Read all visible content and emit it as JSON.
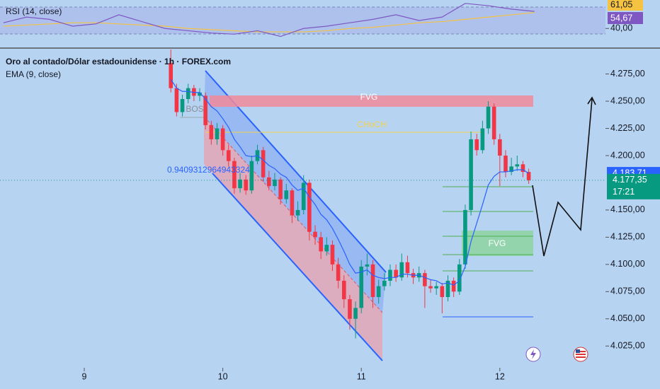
{
  "chart_data": {
    "type": "candlestick",
    "title": "Oro al contado/Dólar estadounidense · 1h · FOREX.com",
    "indicator": "EMA (9, close)",
    "x": [
      15,
      16,
      17,
      18,
      19,
      20,
      21,
      22,
      23,
      24,
      25,
      26,
      27,
      28,
      29,
      30,
      31,
      32,
      33,
      34,
      35,
      36,
      37,
      38,
      39,
      40,
      41,
      42,
      43,
      44,
      45,
      46,
      47,
      48,
      49,
      50,
      51,
      52,
      53,
      54,
      55,
      56,
      57,
      58,
      59,
      60,
      61,
      62,
      63,
      64,
      65,
      66,
      67,
      68,
      69,
      70,
      71,
      72,
      73,
      74,
      75,
      76,
      77
    ],
    "open": [
      4285,
      4262,
      4240,
      4252,
      4262,
      4255,
      4255,
      4228,
      4215,
      4225,
      4205,
      4195,
      4170,
      4178,
      4168,
      4195,
      4205,
      4180,
      4172,
      4178,
      4160,
      4168,
      4145,
      4150,
      4175,
      4130,
      4125,
      4112,
      4118,
      4100,
      4085,
      4068,
      4050,
      4060,
      4098,
      4100,
      4070,
      4080,
      4085,
      4095,
      4088,
      4102,
      4092,
      4088,
      4092,
      4080,
      4078,
      4080,
      4070,
      4085,
      4075,
      4100,
      4150,
      4215,
      4205,
      4225,
      4245,
      4215,
      4200,
      4185,
      4190,
      4192,
      4185
    ],
    "high": [
      4298,
      4266,
      4256,
      4266,
      4265,
      4262,
      4258,
      4232,
      4230,
      4228,
      4210,
      4198,
      4184,
      4182,
      4200,
      4210,
      4208,
      4186,
      4184,
      4180,
      4174,
      4170,
      4158,
      4182,
      4178,
      4136,
      4130,
      4125,
      4122,
      4106,
      4090,
      4072,
      4066,
      4104,
      4110,
      4104,
      4086,
      4092,
      4100,
      4100,
      4110,
      4108,
      4096,
      4098,
      4095,
      4086,
      4084,
      4083,
      4090,
      4088,
      4105,
      4155,
      4222,
      4220,
      4232,
      4250,
      4248,
      4220,
      4205,
      4198,
      4200,
      4195,
      4188
    ],
    "low": [
      4258,
      4236,
      4236,
      4248,
      4250,
      4250,
      4224,
      4210,
      4210,
      4200,
      4190,
      4165,
      4166,
      4164,
      4165,
      4192,
      4176,
      4168,
      4168,
      4155,
      4156,
      4138,
      4140,
      4146,
      4122,
      4118,
      4105,
      4108,
      4094,
      4078,
      4060,
      4040,
      4032,
      4055,
      4090,
      4060,
      4064,
      4076,
      4080,
      4084,
      4085,
      4088,
      4082,
      4084,
      4060,
      4074,
      4072,
      4055,
      4066,
      4070,
      4072,
      4096,
      4145,
      4200,
      4202,
      4220,
      4210,
      4172,
      4180,
      4182,
      4186,
      4180,
      4174
    ],
    "close": [
      4262,
      4240,
      4252,
      4262,
      4255,
      4258,
      4228,
      4215,
      4225,
      4205,
      4195,
      4170,
      4178,
      4168,
      4195,
      4205,
      4180,
      4172,
      4178,
      4160,
      4168,
      4145,
      4150,
      4175,
      4130,
      4125,
      4112,
      4118,
      4100,
      4085,
      4068,
      4050,
      4060,
      4098,
      4100,
      4070,
      4080,
      4085,
      4095,
      4088,
      4102,
      4092,
      4088,
      4092,
      4080,
      4078,
      4080,
      4070,
      4085,
      4075,
      4100,
      4150,
      4215,
      4205,
      4225,
      4245,
      4215,
      4200,
      4185,
      4190,
      4192,
      4185,
      4177.35
    ],
    "ema": [
      4270,
      4262,
      4259,
      4259,
      4258,
      4258,
      4252,
      4245,
      4241,
      4234,
      4226,
      4215,
      4208,
      4200,
      4199,
      4200,
      4196,
      4191,
      4188,
      4183,
      4180,
      4173,
      4168,
      4170,
      4162,
      4155,
      4146,
      4141,
      4133,
      4123,
      4112,
      4100,
      4092,
      4093,
      4095,
      4090,
      4088,
      4087,
      4088,
      4088,
      4091,
      4091,
      4090,
      4090,
      4088,
      4086,
      4085,
      4082,
      4083,
      4081,
      4085,
      4098,
      4121,
      4138,
      4155,
      4173,
      4181,
      4185,
      4185,
      4186,
      4187,
      4187,
      4183.71
    ],
    "up_color": "#089981",
    "down_color": "#f23645",
    "ema_color": "#2962ff",
    "ylim": [
      4005,
      4297.5
    ],
    "yticks": [
      {
        "value": 4025,
        "label": "4.025,00"
      },
      {
        "value": 4050,
        "label": "4.050,00"
      },
      {
        "value": 4075,
        "label": "4.075,00"
      },
      {
        "value": 4100,
        "label": "4.100,00"
      },
      {
        "value": 4125,
        "label": "4.125,00"
      },
      {
        "value": 4150,
        "label": "4.150,00"
      },
      {
        "value": 4200,
        "label": "4.200,00"
      },
      {
        "value": 4225,
        "label": "4.225,00"
      },
      {
        "value": 4250,
        "label": "4.250,00"
      },
      {
        "value": 4275,
        "label": "4.275,00"
      }
    ],
    "xlim": [
      -14.6,
      90.3
    ],
    "xticks": [
      {
        "value": 0,
        "label": "9"
      },
      {
        "value": 24,
        "label": "10"
      },
      {
        "value": 48,
        "label": "11"
      },
      {
        "value": 72,
        "label": "12"
      }
    ],
    "ema_price": {
      "value": 4183.71,
      "label": "4.183,71"
    },
    "last_price": {
      "value": 4177.35,
      "label": "4.177,35"
    },
    "countdown": "17:21",
    "annotations": [
      "FVG",
      "CHoCH",
      "BOS",
      "FVG",
      "0.9409312964943324"
    ],
    "rsi": {
      "title": "RSI (14, close)",
      "x": [
        -14,
        -10,
        -6,
        -2,
        2,
        6,
        10,
        14,
        18,
        22,
        26,
        30,
        34,
        38,
        42,
        46,
        50,
        54,
        58,
        62,
        66,
        70,
        74,
        78
      ],
      "values": [
        45,
        50,
        48,
        42,
        44,
        52,
        46,
        40,
        38,
        36,
        35,
        38,
        33,
        40,
        42,
        45,
        48,
        52,
        47,
        50,
        62,
        60,
        57,
        55
      ],
      "ma": [
        42,
        43,
        44,
        45,
        45,
        44,
        43,
        42,
        40,
        39,
        38,
        37,
        37,
        37,
        38,
        40,
        41,
        43,
        45,
        46,
        48,
        50,
        52,
        54
      ],
      "color": "#7e57c2",
      "ma_color": "#f5c242",
      "ylim": [
        24,
        65
      ],
      "yticks": [
        {
          "value": 40,
          "label": "40,00"
        }
      ],
      "labels": [
        "61,05",
        "54,67"
      ]
    }
  }
}
